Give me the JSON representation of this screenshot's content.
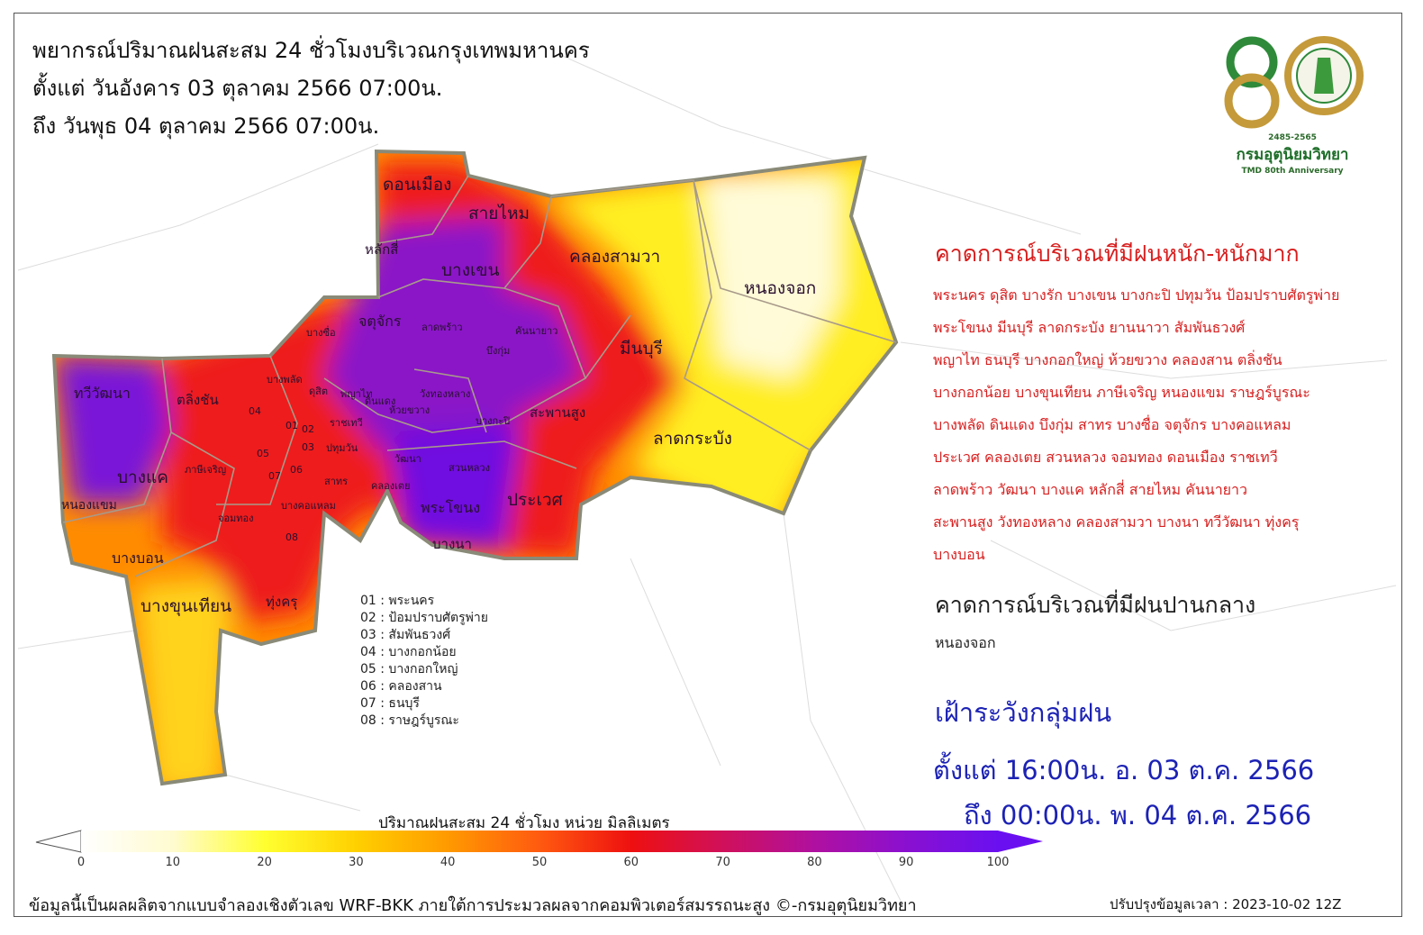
{
  "title": {
    "line1": "พยากรณ์ปริมาณฝนสะสม 24 ชั่วโมงบริเวณกรุงเทพมหานคร",
    "line2": "ตั้งแต่ วันอังคาร 03 ตุลาคม 2566 07:00น.",
    "line3": "ถึง วันพุธ 04 ตุลาคม 2566 07:00น."
  },
  "logo": {
    "years": "2485-2565",
    "name": "กรมอุตุนิยมวิทยา",
    "sub": "TMD 80th Anniversary",
    "number": "80"
  },
  "map_labels": [
    "ดอนเมือง",
    "สายไหม",
    "หลักสี่",
    "บางเขน",
    "คลองสามวา",
    "หนองจอก",
    "จตุจักร",
    "ลาดพร้าว",
    "คันนายาว",
    "บึงกุ่ม",
    "มีนบุรี",
    "ทวีวัฒนา",
    "ตลิ่งชัน",
    "บางแค",
    "ภาษีเจริญ",
    "หนองแขม",
    "บางบอน",
    "บางขุนเทียน",
    "ทุ่งครุ",
    "จอมทอง",
    "บางคอแหลม",
    "สาทร",
    "ปทุมวัน",
    "ราชเทวี",
    "พญาไท",
    "ดินแดง",
    "ห้วยขวาง",
    "วังทองหลาง",
    "บางกะปิ",
    "สะพานสูง",
    "วัฒนา",
    "สวนหลวง",
    "คลองเตย",
    "พระโขนง",
    "บางนา",
    "ประเวศ",
    "ลาดกระบัง",
    "บางซื่อ",
    "ดุสิต",
    "บางพลัด",
    "01",
    "02",
    "03",
    "04",
    "05",
    "06",
    "07",
    "08"
  ],
  "district_key": [
    "01 : พระนคร",
    "02 : ป้อมปราบศัตรูพ่าย",
    "03 : สัมพันธวงศ์",
    "04 : บางกอกน้อย",
    "05 : บางกอกใหญ่",
    "06 : คลองสาน",
    "07 : ธนบุรี",
    "08 : ราษฎร์บูรณะ"
  ],
  "heavy": {
    "heading": "คาดการณ์บริเวณที่มีฝนหนัก-หนักมาก",
    "lines": [
      "พระนคร ดุสิต บางรัก บางเขน บางกะปิ ปทุมวัน ป้อมปราบศัตรูพ่าย",
      "พระโขนง มีนบุรี ลาดกระบัง ยานนาวา สัมพันธวงศ์",
      "พญาไท ธนบุรี บางกอกใหญ่ ห้วยขวาง คลองสาน ตลิ่งชัน",
      "บางกอกน้อย บางขุนเทียน ภาษีเจริญ หนองแขม ราษฎร์บูรณะ",
      "บางพลัด ดินแดง บึงกุ่ม สาทร บางซื่อ จตุจักร บางคอแหลม",
      "ประเวศ คลองเตย สวนหลวง จอมทอง ดอนเมือง ราชเทวี",
      "ลาดพร้าว วัฒนา บางแค หลักสี่ สายไหม คันนายาว",
      "สะพานสูง วังทองหลาง คลองสามวา บางนา ทวีวัฒนา ทุ่งครุ",
      "บางบอน"
    ]
  },
  "moderate": {
    "heading": "คาดการณ์บริเวณที่มีฝนปานกลาง",
    "text": "หนองจอก"
  },
  "watch": {
    "heading": "เฝ้าระวังกลุ่มฝน",
    "from": "ตั้งแต่ 16:00น. อ. 03 ต.ค. 2566",
    "to": "ถึง 00:00น. พ. 04 ต.ค. 2566"
  },
  "colorbar": {
    "title": "ปริมาณฝนสะสม 24 ชั่วโมง หน่วย มิลลิเมตร",
    "ticks": [
      "0",
      "10",
      "20",
      "30",
      "40",
      "50",
      "60",
      "70",
      "80",
      "90",
      "100"
    ],
    "colors": [
      "#ffffff",
      "#fffbd0",
      "#ffff30",
      "#ffd000",
      "#ff9a00",
      "#ff5a10",
      "#ee1010",
      "#d0105a",
      "#b010a0",
      "#8a10d0",
      "#6a10f0"
    ]
  },
  "footer": {
    "source": "ข้อมูลนี้เป็นผลผลิตจากแบบจำลองเชิงตัวเลข WRF-BKK ภายใต้การประมวลผลจากคอมพิวเตอร์สมรรถนะสูง ©-กรมอุตุนิยมวิทยา",
    "updated": "ปรับปรุงข้อมูลเวลา : 2023-10-02 12Z"
  }
}
